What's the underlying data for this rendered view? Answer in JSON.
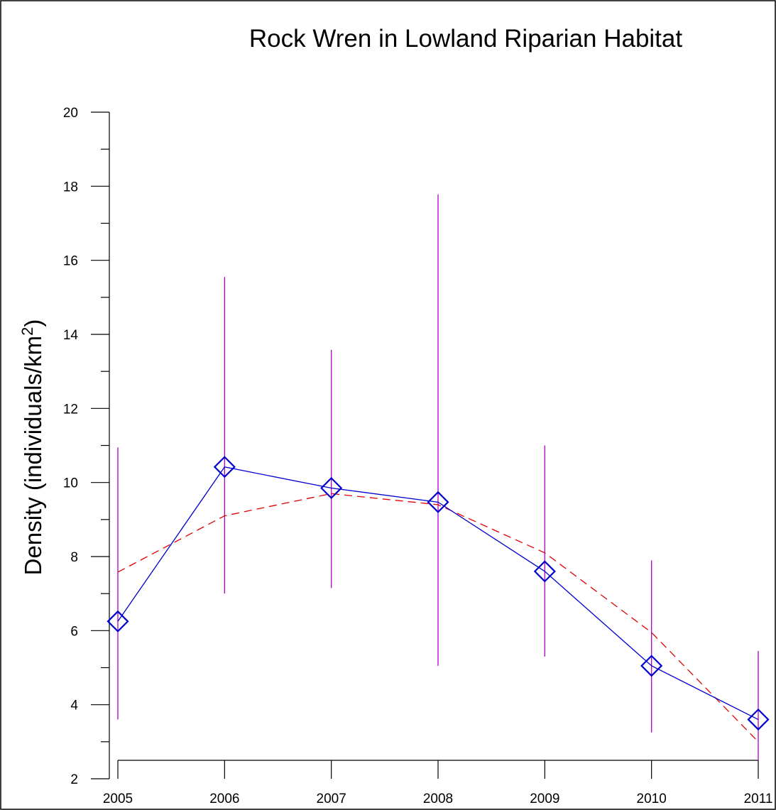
{
  "chart_data": {
    "type": "line",
    "title": "Rock Wren in Lowland Riparian Habitat",
    "ylabel": "Density (individuals/km",
    "ylabel_sup": "2",
    "ylabel_close": ")",
    "xlabel": "",
    "x": [
      2005,
      2006,
      2007,
      2008,
      2009,
      2010,
      2011
    ],
    "x_tick_labels": [
      "2005",
      "2006",
      "2007",
      "2008",
      "2009",
      "2010",
      "2011"
    ],
    "y_ticks": [
      2,
      4,
      6,
      8,
      10,
      12,
      14,
      16,
      18,
      20
    ],
    "y_tick_labels": [
      "2",
      "4",
      "6",
      "8",
      "10",
      "12",
      "14",
      "16",
      "18",
      "20"
    ],
    "y_minor_ticks": [
      3,
      5,
      7,
      9,
      11,
      13,
      15,
      17,
      19
    ],
    "ylim": [
      2,
      20
    ],
    "xlim": [
      2005,
      2011
    ],
    "grid": false,
    "series": [
      {
        "style": "solid-line-diamond-markers",
        "color": "#0000cc",
        "values": [
          6.25,
          10.42,
          9.85,
          9.47,
          7.6,
          5.05,
          3.6
        ],
        "error_low": [
          3.6,
          7.0,
          7.15,
          5.05,
          5.3,
          3.25,
          2.5
        ],
        "error_high": [
          10.95,
          15.55,
          13.58,
          17.78,
          11.0,
          7.9,
          5.45
        ],
        "error_color": "#b000c8"
      },
      {
        "style": "dashed-fit-line",
        "color": "#e00000",
        "values": [
          7.58,
          9.1,
          9.7,
          9.4,
          8.1,
          5.95,
          3.0
        ]
      }
    ]
  }
}
